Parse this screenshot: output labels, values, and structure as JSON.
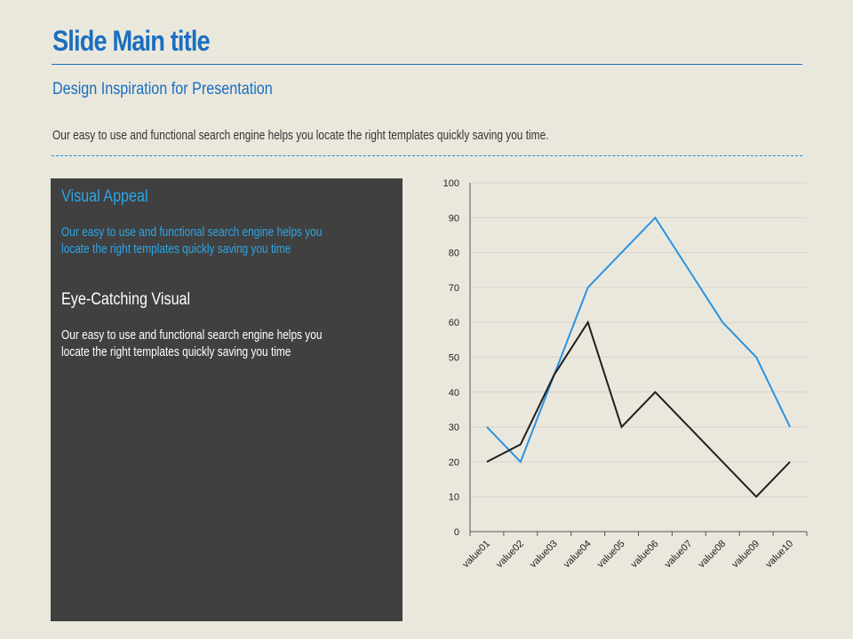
{
  "slide": {
    "title": "Slide Main title",
    "subtitle": "Design Inspiration for Presentation",
    "description": "Our easy to use and functional search engine helps you locate the right templates quickly saving you time."
  },
  "panel": {
    "section1": {
      "heading": "Visual Appeal",
      "line1": "Our easy to use and functional search engine helps you",
      "line2": "locate the right templates quickly saving you time"
    },
    "section2": {
      "heading": "Eye-Catching Visual",
      "line1": "Our easy to use and functional search engine helps you",
      "line2": "locate the right templates quickly saving you time"
    }
  },
  "colors": {
    "accent": "#1a6fc0",
    "series_blue": "#2a93e0",
    "series_black": "#1f1f1f",
    "panel_bg": "#404040",
    "background": "#eae8dd"
  },
  "chart_data": {
    "type": "line",
    "categories": [
      "value01",
      "value02",
      "value03",
      "value04",
      "value05",
      "value06",
      "value07",
      "value08",
      "value09",
      "value10"
    ],
    "series": [
      {
        "values": [
          30,
          20,
          45,
          70,
          80,
          90,
          75,
          60,
          50,
          30
        ],
        "color": "#2a93e0"
      },
      {
        "values": [
          20,
          25,
          45,
          60,
          30,
          40,
          30,
          20,
          10,
          20
        ],
        "color": "#1f1f1f"
      }
    ],
    "ylim": [
      0,
      100
    ],
    "yticks": [
      0,
      10,
      20,
      30,
      40,
      50,
      60,
      70,
      80,
      90,
      100
    ],
    "grid": true,
    "legend": "none"
  }
}
